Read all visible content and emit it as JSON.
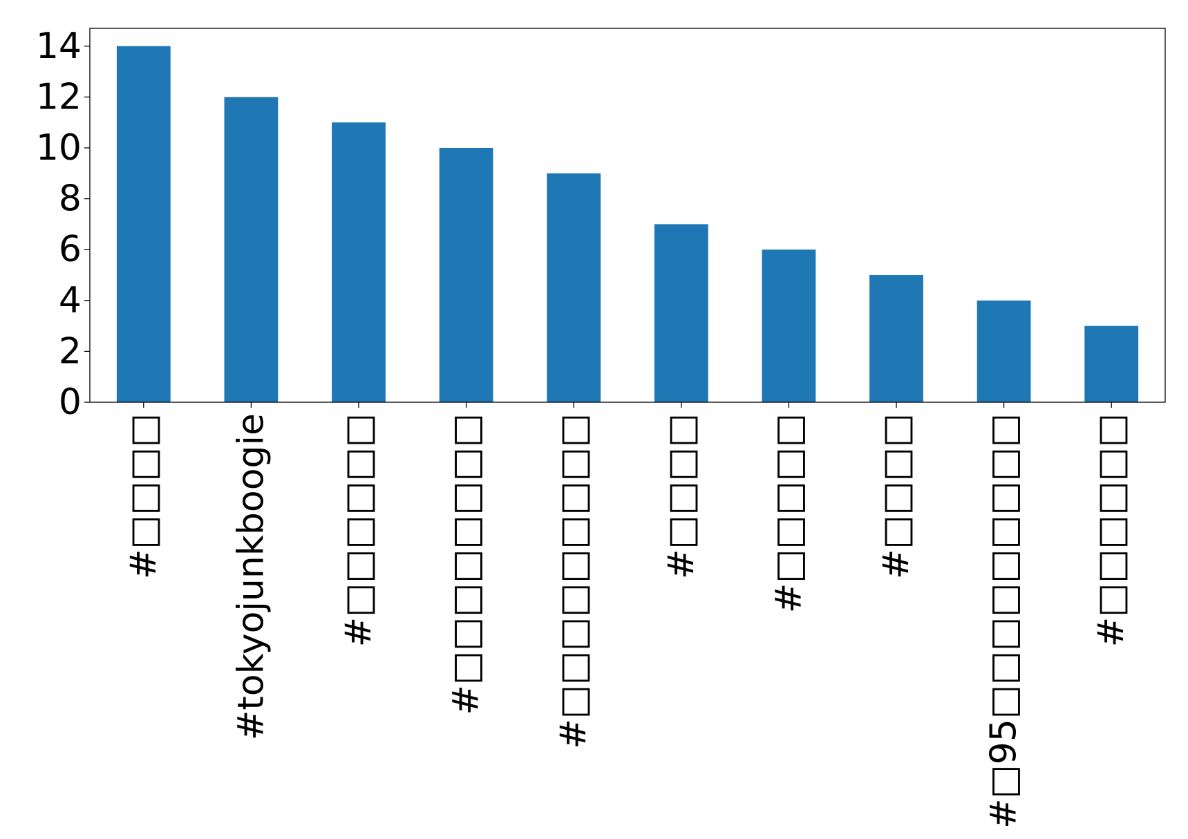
{
  "chart_data": {
    "type": "bar",
    "title": "",
    "xlabel": "",
    "ylabel": "",
    "categories": [
      "#□□□□",
      "#tokyojunkboogie",
      "#□□□□□□",
      "#□□□□□□□□",
      "#□□□□□□□□□",
      "#□□□□",
      "#□□□□□",
      "#□□□□",
      "#□95□□□□□□□□□",
      "#□□□□□□"
    ],
    "values": [
      14,
      12,
      11,
      10,
      9,
      7,
      6,
      5,
      4,
      3
    ],
    "ylim": [
      0,
      14.7
    ],
    "yticks": [
      0,
      2,
      4,
      6,
      8,
      10,
      12,
      14
    ],
    "bar_color": "#1f77b4",
    "grid": false,
    "legend": "none"
  }
}
